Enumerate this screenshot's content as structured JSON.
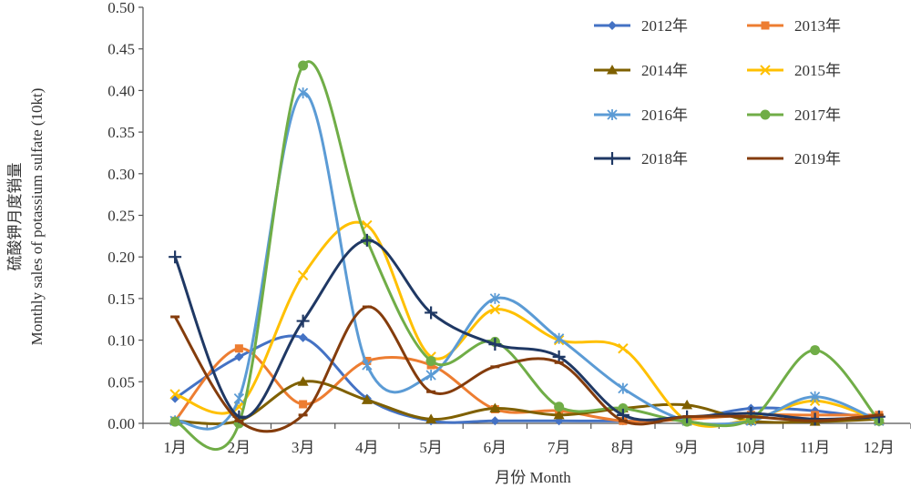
{
  "chart_data": {
    "type": "line",
    "xlabel": "月份 Month",
    "ylabel_cn": "硫酸钾月度销量",
    "ylabel_en": "Monthly sales of potassium sulfate (10kt)",
    "categories": [
      "1月",
      "2月",
      "3月",
      "4月",
      "5月",
      "6月",
      "7月",
      "8月",
      "9月",
      "10月",
      "11月",
      "12月"
    ],
    "ylim": [
      0,
      0.5
    ],
    "yticks": [
      "0.00",
      "0.05",
      "0.10",
      "0.15",
      "0.20",
      "0.25",
      "0.30",
      "0.35",
      "0.40",
      "0.45",
      "0.50"
    ],
    "ytick_values": [
      0,
      0.05,
      0.1,
      0.15,
      0.2,
      0.25,
      0.3,
      0.35,
      0.4,
      0.45,
      0.5
    ],
    "grid": false,
    "legend_position": "top-right",
    "series": [
      {
        "name": "2012年",
        "color": "#4472c4",
        "marker": "diamond",
        "values": [
          0.03,
          0.08,
          0.103,
          0.03,
          0.003,
          0.003,
          0.003,
          0.003,
          0.005,
          0.018,
          0.015,
          0.005
        ]
      },
      {
        "name": "2013年",
        "color": "#ed7d31",
        "marker": "square",
        "values": [
          0.003,
          0.09,
          0.023,
          0.075,
          0.07,
          0.017,
          0.015,
          0.003,
          0.005,
          0.01,
          0.01,
          0.01
        ]
      },
      {
        "name": "2014年",
        "color": "#7f6000",
        "marker": "triangle",
        "values": [
          0.003,
          0.003,
          0.05,
          0.028,
          0.005,
          0.018,
          0.01,
          0.018,
          0.022,
          0.003,
          0.002,
          0.005
        ]
      },
      {
        "name": "2015年",
        "color": "#ffc000",
        "marker": "x",
        "values": [
          0.035,
          0.02,
          0.178,
          0.238,
          0.08,
          0.137,
          0.1,
          0.09,
          0.003,
          0.005,
          0.027,
          0.003
        ]
      },
      {
        "name": "2016年",
        "color": "#5b9bd5",
        "marker": "asterisk",
        "values": [
          0.003,
          0.03,
          0.397,
          0.07,
          0.058,
          0.15,
          0.102,
          0.042,
          0.003,
          0.003,
          0.032,
          0.003
        ]
      },
      {
        "name": "2017年",
        "color": "#70ad47",
        "marker": "circle",
        "values": [
          0.002,
          0.0,
          0.43,
          0.22,
          0.075,
          0.098,
          0.02,
          0.018,
          0.002,
          0.005,
          0.088,
          0.003
        ]
      },
      {
        "name": "2018年",
        "color": "#1f3864",
        "marker": "plus",
        "values": [
          0.2,
          0.008,
          0.123,
          0.22,
          0.133,
          0.095,
          0.08,
          0.01,
          0.008,
          0.012,
          0.005,
          0.008
        ]
      },
      {
        "name": "2019年",
        "color": "#843c0c",
        "marker": "dash",
        "values": [
          0.128,
          0.003,
          0.01,
          0.14,
          0.038,
          0.068,
          0.073,
          0.003,
          0.008,
          0.008,
          0.003,
          0.01
        ]
      }
    ]
  }
}
